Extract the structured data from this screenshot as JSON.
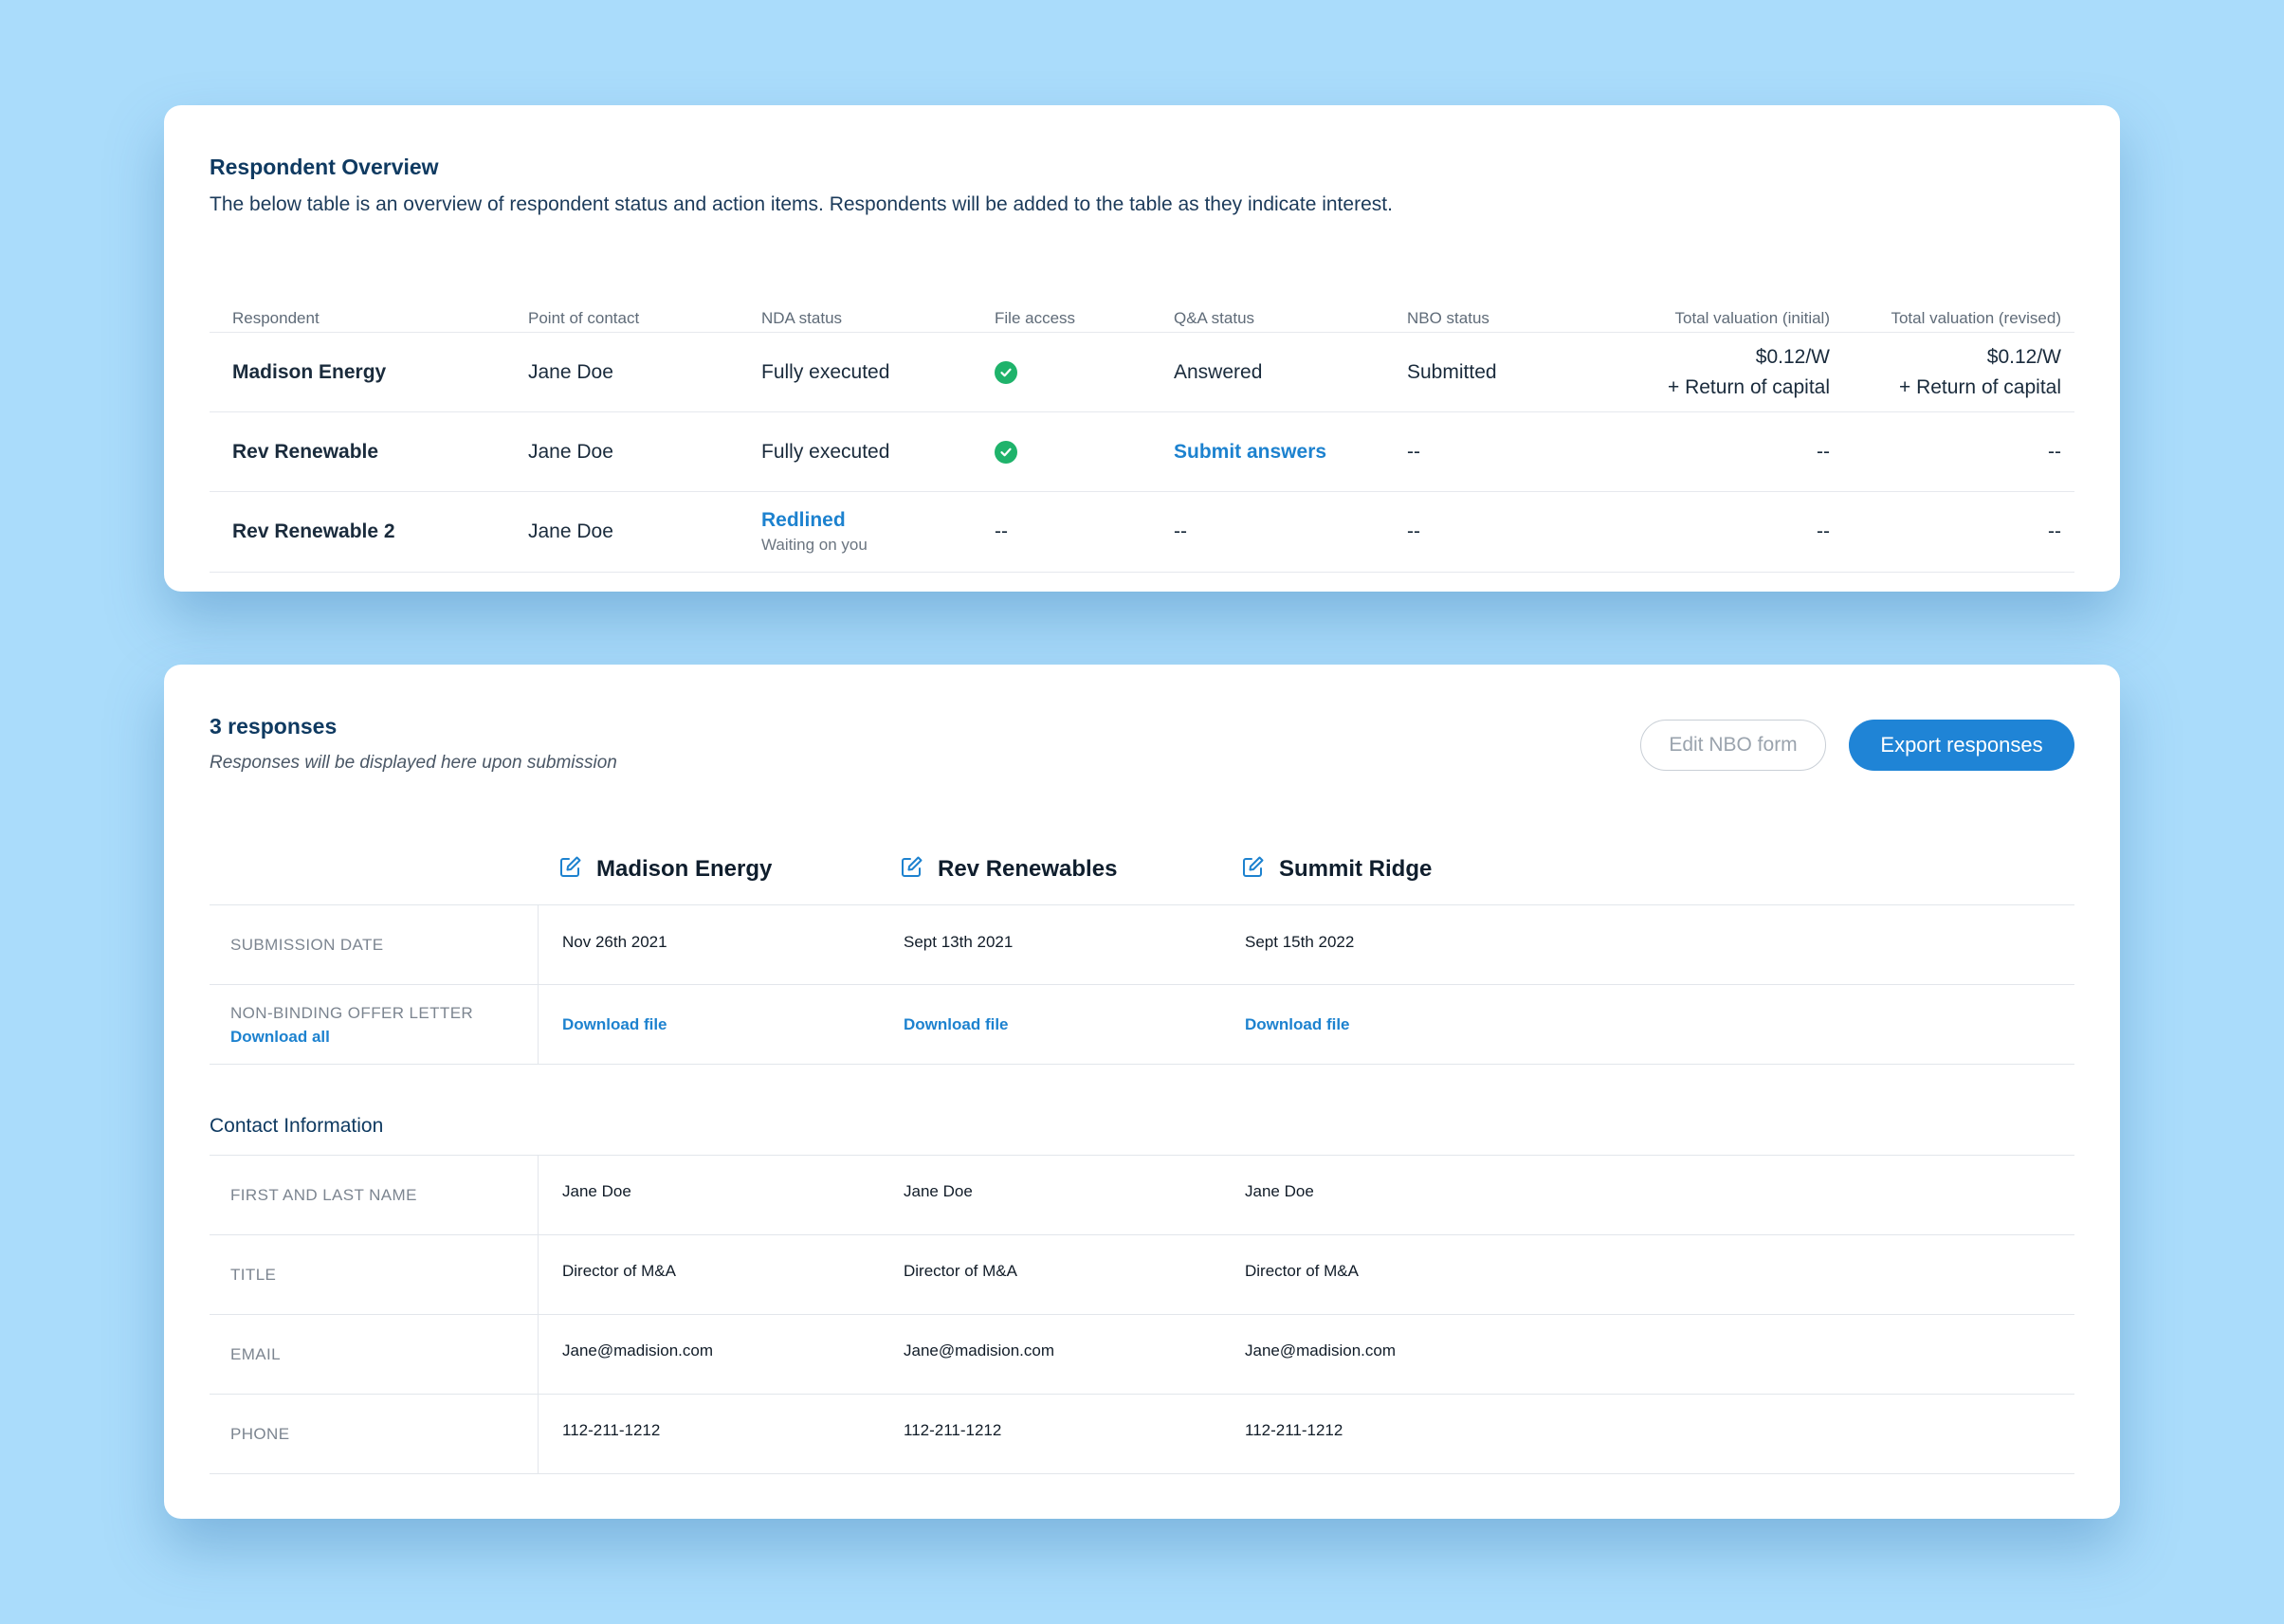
{
  "overview": {
    "title": "Respondent Overview",
    "description": "The below table is an overview of respondent status and action items. Respondents will be added to the table as they indicate interest.",
    "columns": [
      "Respondent",
      "Point of contact",
      "NDA status",
      "File access",
      "Q&A status",
      "NBO status",
      "Total valuation (initial)",
      "Total valuation (revised)"
    ],
    "rows": [
      {
        "respondent": "Madison Energy",
        "contact": "Jane Doe",
        "nda": "Fully executed",
        "file_access": "check-circle-icon",
        "qa": "Answered",
        "nbo": "Submitted",
        "val_initial": [
          "$0.12/W",
          "+ Return of capital"
        ],
        "val_revised": [
          "$0.12/W",
          "+ Return of capital"
        ]
      },
      {
        "respondent": "Rev Renewable",
        "contact": "Jane Doe",
        "nda": "Fully executed",
        "file_access": "check-circle-icon",
        "qa": "Submit answers",
        "nbo": "--",
        "val_initial": "--",
        "val_revised": "--"
      },
      {
        "respondent": "Rev Renewable 2",
        "contact": "Jane Doe",
        "nda": "Redlined",
        "nda_sub": "Waiting on you",
        "file_access": "--",
        "qa": "--",
        "nbo": "--",
        "val_initial": "--",
        "val_revised": "--"
      }
    ]
  },
  "responses": {
    "title": "3 responses",
    "subtitle": "Responses will be displayed here upon submission",
    "edit_button": "Edit NBO form",
    "export_button": "Export responses",
    "companies": [
      "Madison Energy",
      "Rev Renewables",
      "Summit Ridge"
    ],
    "submission_label": "SUBMISSION DATE",
    "submission_dates": [
      "Nov 26th 2021",
      "Sept 13th 2021",
      "Sept 15th 2022"
    ],
    "offer_label": "NON-BINDING OFFER LETTER",
    "download_all": "Download all",
    "download_file": "Download file",
    "contact_section": "Contact Information",
    "name_label": "FIRST AND LAST NAME",
    "names": [
      "Jane Doe",
      "Jane Doe",
      "Jane Doe"
    ],
    "title_label": "TITLE",
    "titles": [
      "Director of M&A",
      "Director of M&A",
      "Director of M&A"
    ],
    "email_label": "EMAIL",
    "emails": [
      "Jane@madision.com",
      "Jane@madision.com",
      "Jane@madision.com"
    ],
    "phone_label": "PHONE",
    "phones": [
      "112-211-1212",
      "112-211-1212",
      "112-211-1212"
    ]
  },
  "colors": {
    "accent": "#1f84d6",
    "link": "#1d82cf",
    "success": "#1fb36b",
    "background": "#aadcfb"
  }
}
